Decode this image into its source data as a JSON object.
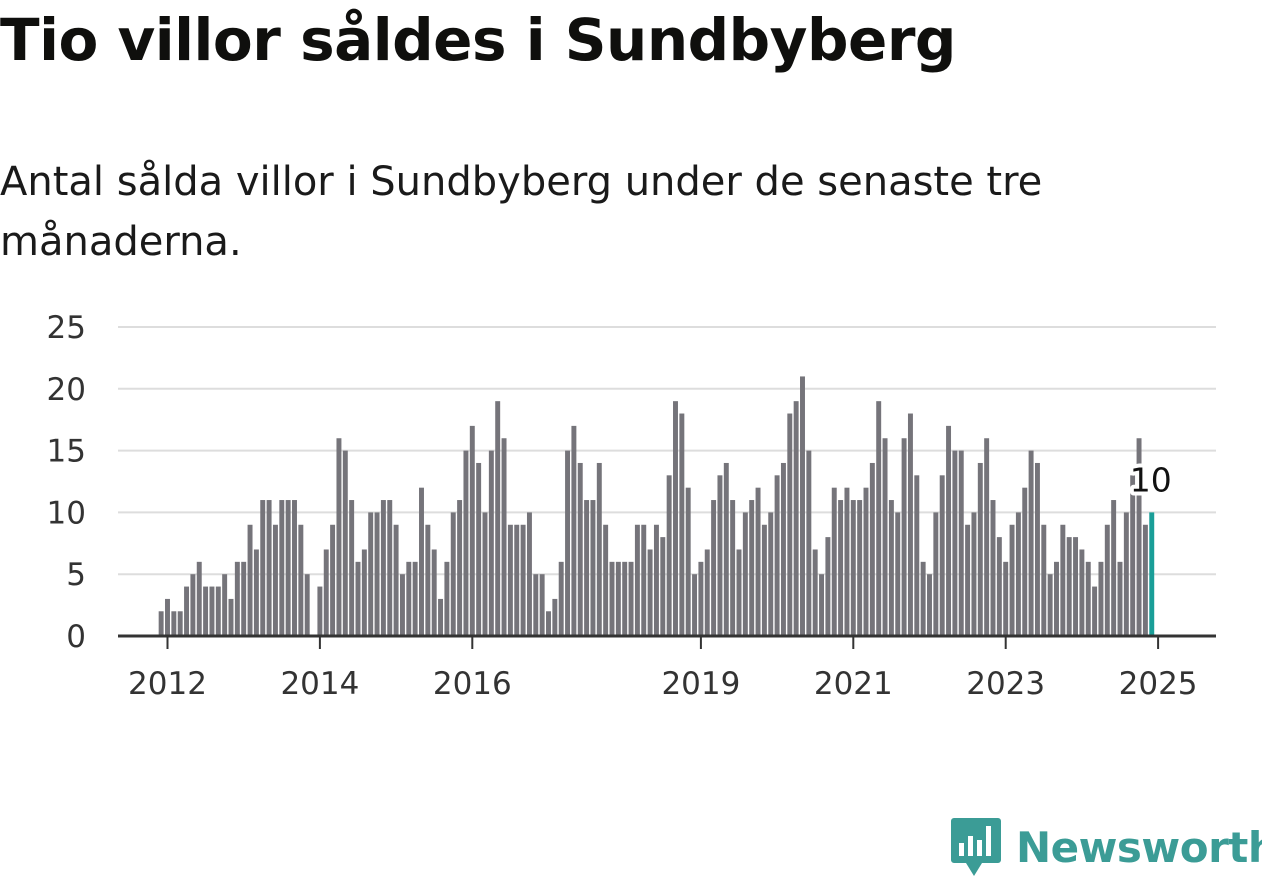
{
  "header": {
    "title": "Tio villor såldes i Sundbyberg",
    "subtitle": "Antal sålda villor i Sundbyberg under de senaste tre månaderna."
  },
  "brand": {
    "name": "Newsworthy",
    "icon": "newsworthy-logo-icon",
    "color": "#3b9c96"
  },
  "colors": {
    "bar": "#75747a",
    "highlight": "#1a9e98",
    "grid": "#dddddd",
    "axis": "#333333"
  },
  "chart_data": {
    "type": "bar",
    "title": "Tio villor såldes i Sundbyberg",
    "subtitle": "Antal sålda villor i Sundbyberg under de senaste tre månaderna.",
    "xlabel": "",
    "ylabel": "",
    "ylim": [
      0,
      25
    ],
    "yticks": [
      "0",
      "5",
      "10",
      "15",
      "20",
      "25"
    ],
    "xticks": [
      "2012",
      "2014",
      "2016",
      "2019",
      "2021",
      "2023",
      "2025"
    ],
    "grid": true,
    "start": "2011-12",
    "values": [
      2,
      3,
      2,
      2,
      4,
      5,
      6,
      4,
      4,
      4,
      5,
      3,
      6,
      6,
      9,
      7,
      11,
      11,
      9,
      11,
      11,
      11,
      9,
      5,
      0,
      4,
      7,
      9,
      16,
      15,
      11,
      6,
      7,
      10,
      10,
      11,
      11,
      9,
      5,
      6,
      6,
      12,
      9,
      7,
      3,
      6,
      10,
      11,
      15,
      17,
      14,
      10,
      15,
      19,
      16,
      9,
      9,
      9,
      10,
      5,
      5,
      2,
      3,
      6,
      15,
      17,
      14,
      11,
      11,
      14,
      9,
      6,
      6,
      6,
      6,
      9,
      9,
      7,
      9,
      8,
      13,
      19,
      18,
      12,
      5,
      6,
      7,
      11,
      13,
      14,
      11,
      7,
      10,
      11,
      12,
      9,
      10,
      13,
      14,
      18,
      19,
      21,
      15,
      7,
      5,
      8,
      12,
      11,
      12,
      11,
      11,
      12,
      14,
      19,
      16,
      11,
      10,
      16,
      18,
      13,
      6,
      5,
      10,
      13,
      17,
      15,
      15,
      9,
      10,
      14,
      16,
      11,
      8,
      6,
      9,
      10,
      12,
      15,
      14,
      9,
      5,
      6,
      9,
      8,
      8,
      7,
      6,
      4,
      6,
      9,
      11,
      6,
      10,
      13,
      16,
      9,
      10
    ],
    "highlight": {
      "label": "10",
      "value": 10
    }
  }
}
